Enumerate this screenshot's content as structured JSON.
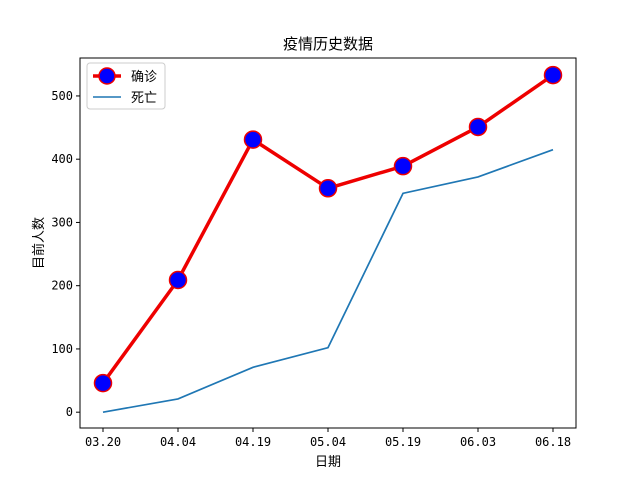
{
  "chart_data": {
    "type": "line",
    "title": "疫情历史数据",
    "xlabel": "日期",
    "ylabel": "目前人数",
    "categories": [
      "03.20",
      "04.04",
      "04.19",
      "05.04",
      "05.19",
      "06.03",
      "06.18"
    ],
    "ylim": [
      -25,
      560
    ],
    "yticks": [
      0,
      100,
      200,
      300,
      400,
      500
    ],
    "grid": false,
    "legend_position": "top-left",
    "series": [
      {
        "name": "确诊",
        "values": [
          46,
          209,
          431,
          354,
          389,
          451,
          533
        ],
        "color": "#ee0000",
        "marker_face": "#0000ff",
        "marker_edge": "#ee0000",
        "marker": "circle"
      },
      {
        "name": "死亡",
        "values": [
          0,
          21,
          71,
          102,
          346,
          372,
          415
        ],
        "color": "#1f77b4",
        "marker": "none"
      }
    ]
  }
}
